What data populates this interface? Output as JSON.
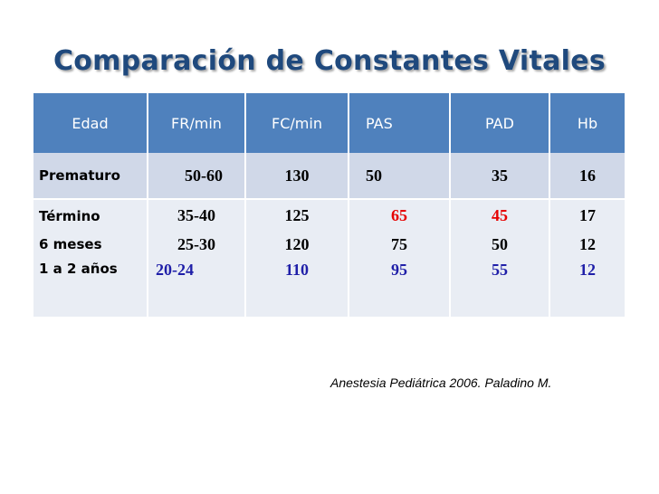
{
  "title": "Comparación de Constantes Vitales",
  "table": {
    "headers": [
      "Edad",
      "FR/min",
      "FC/min",
      "PAS",
      "PAD",
      "Hb"
    ],
    "rows": [
      [
        "Prematuro",
        "50-60",
        "130",
        "50",
        "35",
        "16"
      ],
      [
        "Término",
        "35-40",
        "125",
        "65",
        "45",
        "17"
      ],
      [
        "6 meses",
        "25-30",
        "120",
        "75",
        "50",
        "12"
      ],
      [
        "1 a 2 años",
        "20-24",
        "110",
        "95",
        "55",
        "12"
      ]
    ]
  },
  "colors": {
    "header_bg": "#4f81bd",
    "title": "#1f497d",
    "highlight_red": "#e60000",
    "highlight_blue": "#1f1fa8"
  },
  "citation": "Anestesia Pediátrica 2006. Paladino M."
}
